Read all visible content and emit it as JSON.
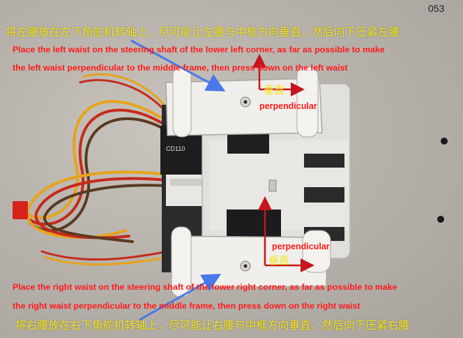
{
  "frame_number": "053",
  "top_caption": {
    "zh": "将左腰放在左下角舵机转轴上，尽可能让左腰与中框方向垂直，然后向下压紧左腰",
    "en_line1": "Place the left waist on the steering shaft of the lower left corner, as far as possible to make",
    "en_line2": "the left waist perpendicular to the middle frame, then press down on the left waist"
  },
  "bottom_caption": {
    "en_line1": "Place the right waist on the steering shaft of the lower right corner, as far as possible to make",
    "en_line2": "the right waist perpendicular to the middle frame, then press down on the right waist",
    "zh": "将右腰放在右下角舵机转轴上，尽可能让右腰与中框方向垂直，然后向下压紧右腰"
  },
  "labels": {
    "upper_zh": "垂直",
    "upper_en": "perpendicular",
    "lower_en": "perpendicular",
    "lower_zh": "垂直",
    "capacitor": "CD110"
  },
  "colors": {
    "caption_zh": "#f6e31a",
    "caption_en": "#ff1a1a",
    "arrow_blue": "#4a78e8",
    "arrow_red": "#c4161c"
  }
}
